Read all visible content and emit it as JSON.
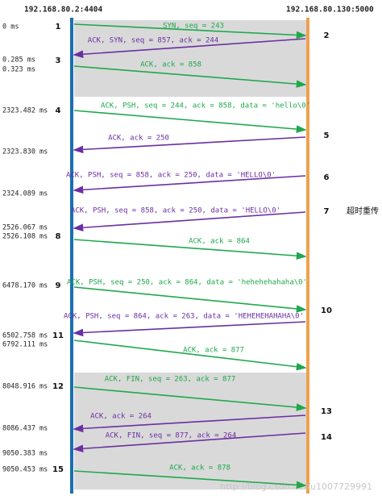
{
  "hosts": {
    "left": "192.168.80.2:4404",
    "right": "192.168.80.130:5000"
  },
  "timestamps": [
    "0 ms",
    "0.285 ms",
    "0.323 ms",
    "2323.482 ms",
    "2323.830 ms",
    "2324.089 ms",
    "2526.067 ms",
    "2526.108 ms",
    "6478.170 ms",
    "6502.758 ms",
    "6792.111 ms",
    "8048.916 ms",
    "8086.437 ms",
    "9050.383 ms",
    "9050.453 ms"
  ],
  "messages": [
    {
      "step": "1",
      "label": "SYN, seq = 243"
    },
    {
      "step": "2",
      "label": "ACK, SYN, seq = 857, ack = 244"
    },
    {
      "step": "3",
      "label": "ACK, ack = 858"
    },
    {
      "step": "4",
      "label": "ACK, PSH, seq = 244, ack = 858, data = 'hello\\0'"
    },
    {
      "step": "5",
      "label": "ACK, ack = 250"
    },
    {
      "step": "6",
      "label": "ACK, PSH, seq = 858, ack = 250, data = 'HELLO\\0'"
    },
    {
      "step": "7",
      "label": "ACK, PSH, seq = 858, ack = 250, data = 'HELLO\\0'"
    },
    {
      "step": "8",
      "label": "ACK, ack = 864"
    },
    {
      "step": "9",
      "label": "ACK, PSH, seq = 250, ack = 864, data = 'hehehehahaha\\0'"
    },
    {
      "step": "10",
      "label": "ACK, PSH, seq = 864, ack = 263, data = 'HEHEHEHAHAHA\\0'"
    },
    {
      "step": "11",
      "label": "ACK, ack = 877"
    },
    {
      "step": "12",
      "label": "ACK, FIN, seq = 263, ack = 877"
    },
    {
      "step": "13",
      "label": "ACK, ack = 264"
    },
    {
      "step": "14",
      "label": "ACK, FIN, seq = 877, ack = 264"
    },
    {
      "step": "15",
      "label": "ACK, ack = 878"
    }
  ],
  "annotation": "超时重传",
  "watermark": "http://blog.csdn.net/u1007729991"
}
